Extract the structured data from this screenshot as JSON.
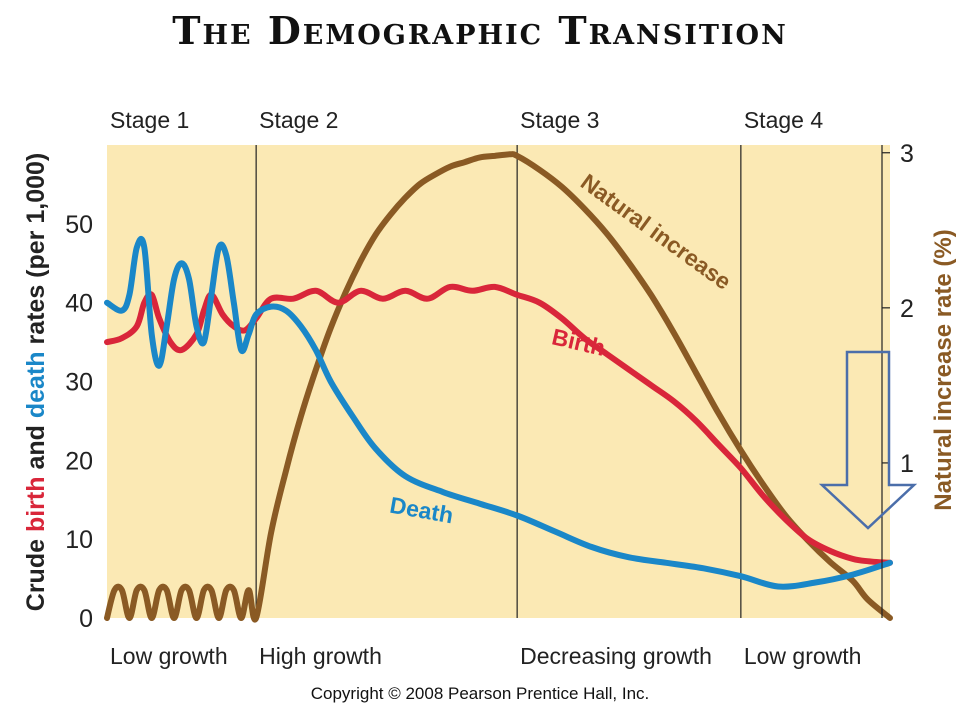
{
  "title": "The Demographic Transition",
  "copyright": "Copyright © 2008 Pearson Prentice Hall, Inc.",
  "colors": {
    "background": "#fbe9b4",
    "birth": "#d9263a",
    "death": "#1a87c8",
    "natural_increase": "#8a5a24",
    "arrow": "#4b6eaa"
  },
  "annotation": {
    "type": "arrow",
    "direction": "down",
    "color": "#4b6eaa"
  },
  "chart_data": {
    "type": "line",
    "title": "The Demographic Transition",
    "ylabel_parts": [
      {
        "text": "Crude ",
        "role": "plain"
      },
      {
        "text": "birth",
        "role": "birth"
      },
      {
        "text": " and ",
        "role": "plain"
      },
      {
        "text": "death",
        "role": "death"
      },
      {
        "text": " rates (per 1,000)",
        "role": "plain"
      }
    ],
    "ylabel_right": "Natural increase rate (%)",
    "ylim": [
      0,
      60
    ],
    "ylim_right": [
      0,
      3.05
    ],
    "yticks": [
      0,
      10,
      20,
      30,
      40,
      50
    ],
    "yticks_right": [
      1,
      2,
      3
    ],
    "xlim": [
      0,
      10.5
    ],
    "grid": false,
    "stages": [
      {
        "name": "Stage 1",
        "growth": "Low growth",
        "x_start": 0
      },
      {
        "name": "Stage 2",
        "growth": "High growth",
        "x_start": 2
      },
      {
        "name": "Stage 3",
        "growth": "Decreasing growth",
        "x_start": 5.5
      },
      {
        "name": "Stage 4",
        "growth": "Low growth",
        "x_start": 8.5
      }
    ],
    "series": [
      {
        "name": "Birth",
        "axis": "left",
        "color": "#d9263a",
        "x": [
          0,
          0.2,
          0.4,
          0.5,
          0.6,
          0.7,
          0.85,
          1.0,
          1.2,
          1.3,
          1.4,
          1.55,
          1.7,
          1.85,
          2.0,
          2.2,
          2.5,
          2.8,
          3.1,
          3.4,
          3.7,
          4.0,
          4.3,
          4.6,
          4.9,
          5.2,
          5.5,
          5.8,
          6.1,
          6.4,
          6.7,
          7.0,
          7.3,
          7.6,
          7.9,
          8.2,
          8.5,
          8.8,
          9.1,
          9.4,
          9.7,
          10.0,
          10.2,
          10.5
        ],
        "y": [
          35,
          35.5,
          37,
          40,
          41,
          38,
          35,
          34,
          36,
          39,
          41,
          38.5,
          37,
          36.5,
          38,
          40.5,
          40.5,
          41.5,
          40,
          41.5,
          40.5,
          41.5,
          40.5,
          42,
          41.5,
          42,
          41,
          40,
          38,
          35.5,
          33.5,
          31.5,
          29.5,
          27.5,
          25,
          22,
          19,
          15.5,
          12.5,
          10,
          8.5,
          7.5,
          7.2,
          7
        ]
      },
      {
        "name": "Death",
        "axis": "left",
        "color": "#1a87c8",
        "x": [
          0,
          0.2,
          0.3,
          0.4,
          0.5,
          0.6,
          0.7,
          0.8,
          0.9,
          1.0,
          1.1,
          1.2,
          1.3,
          1.4,
          1.5,
          1.6,
          1.7,
          1.8,
          1.9,
          2.0,
          2.2,
          2.4,
          2.6,
          2.8,
          3.0,
          3.3,
          3.6,
          4.0,
          4.5,
          5.0,
          5.5,
          6.0,
          6.5,
          7.0,
          7.5,
          8.0,
          8.5,
          9.0,
          9.5,
          10.0,
          10.5
        ],
        "y": [
          40,
          39,
          41,
          47,
          47,
          36,
          32,
          37,
          43,
          45,
          43,
          37,
          35,
          41,
          47,
          46,
          40,
          34,
          36,
          38.5,
          39.5,
          39,
          37,
          34,
          30,
          25.5,
          21.5,
          18,
          16,
          14.5,
          13,
          11,
          9,
          7.7,
          7,
          6.3,
          5.3,
          4,
          4.5,
          5.5,
          7
        ]
      },
      {
        "name": "Natural increase",
        "axis": "right",
        "color": "#8a5a24",
        "x": [
          0,
          0.1,
          0.2,
          0.3,
          0.4,
          0.5,
          0.6,
          0.7,
          0.8,
          0.9,
          1.0,
          1.1,
          1.2,
          1.3,
          1.4,
          1.5,
          1.6,
          1.7,
          1.8,
          1.9,
          2.0,
          2.2,
          2.4,
          2.6,
          2.8,
          3.0,
          3.2,
          3.4,
          3.6,
          3.8,
          4.0,
          4.2,
          4.4,
          4.6,
          4.8,
          5.0,
          5.2,
          5.4,
          5.5,
          5.8,
          6.1,
          6.4,
          6.7,
          7.0,
          7.3,
          7.6,
          7.9,
          8.2,
          8.5,
          8.8,
          9.1,
          9.4,
          9.7,
          10.0,
          10.2,
          10.5
        ],
        "y": [
          0.0,
          0.18,
          0.18,
          0.0,
          0.18,
          0.18,
          0.0,
          0.18,
          0.18,
          0.0,
          0.18,
          0.18,
          0.0,
          0.18,
          0.18,
          0.0,
          0.18,
          0.18,
          0.0,
          0.18,
          0.0,
          0.55,
          0.95,
          1.3,
          1.6,
          1.87,
          2.1,
          2.3,
          2.47,
          2.6,
          2.71,
          2.8,
          2.86,
          2.91,
          2.94,
          2.97,
          2.98,
          2.99,
          2.98,
          2.89,
          2.78,
          2.64,
          2.48,
          2.29,
          2.08,
          1.84,
          1.58,
          1.32,
          1.08,
          0.86,
          0.66,
          0.5,
          0.36,
          0.24,
          0.12,
          0.0
        ]
      }
    ],
    "annotations": [
      {
        "text": "Natural increase",
        "series": "Natural increase",
        "x": 7.3,
        "y": 2.45,
        "angle": 36
      },
      {
        "text": "Birth",
        "series": "Birth",
        "x": 6.3,
        "y": 34,
        "angle": 13
      },
      {
        "text": "Death",
        "series": "Death",
        "x": 4.2,
        "y": 12.7,
        "angle": 10
      }
    ]
  }
}
